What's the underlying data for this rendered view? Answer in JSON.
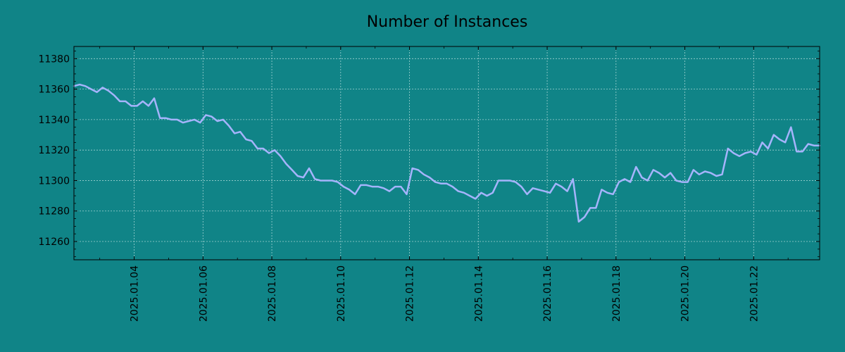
{
  "colors": {
    "background": "#108487",
    "line": "#a5b4fc",
    "grid": "#9fd1d1",
    "axes": "#000000"
  },
  "chart_data": {
    "type": "line",
    "title": "Number of Instances",
    "xlabel": "",
    "ylabel": "",
    "x_axis_type": "date",
    "xlim": [
      "2025-01-02 06:00",
      "2025-01-23 22:00"
    ],
    "ylim": [
      11248,
      11388
    ],
    "y_ticks": [
      11260,
      11280,
      11300,
      11320,
      11340,
      11360,
      11380
    ],
    "y_tick_labels": [
      "11260",
      "11280",
      "11300",
      "11320",
      "11340",
      "11360",
      "11380"
    ],
    "x_ticks": [
      "2025-01-04",
      "2025-01-06",
      "2025-01-08",
      "2025-01-10",
      "2025-01-12",
      "2025-01-14",
      "2025-01-16",
      "2025-01-18",
      "2025-01-20",
      "2025-01-22"
    ],
    "x_tick_labels": [
      "2025.01.04",
      "2025.01.06",
      "2025.01.08",
      "2025.01.10",
      "2025.01.12",
      "2025.01.14",
      "2025.01.16",
      "2025.01.18",
      "2025.01.20",
      "2025.01.22"
    ],
    "grid": true,
    "legend": "none",
    "series": [
      {
        "x": [
          "2025-01-02 06:00",
          "2025-01-02 10:00",
          "2025-01-02 14:00",
          "2025-01-02 18:00",
          "2025-01-02 22:00",
          "2025-01-03 02:00",
          "2025-01-03 06:00",
          "2025-01-03 10:00",
          "2025-01-03 14:00",
          "2025-01-03 18:00",
          "2025-01-03 22:00",
          "2025-01-04 02:00",
          "2025-01-04 06:00",
          "2025-01-04 10:00",
          "2025-01-04 14:00",
          "2025-01-04 18:00",
          "2025-01-04 22:00",
          "2025-01-05 02:00",
          "2025-01-05 06:00",
          "2025-01-05 10:00",
          "2025-01-05 14:00",
          "2025-01-05 18:00",
          "2025-01-05 22:00",
          "2025-01-06 02:00",
          "2025-01-06 06:00",
          "2025-01-06 10:00",
          "2025-01-06 14:00",
          "2025-01-06 18:00",
          "2025-01-06 22:00",
          "2025-01-07 02:00",
          "2025-01-07 06:00",
          "2025-01-07 10:00",
          "2025-01-07 14:00",
          "2025-01-07 18:00",
          "2025-01-07 22:00",
          "2025-01-08 02:00",
          "2025-01-08 06:00",
          "2025-01-08 10:00",
          "2025-01-08 14:00",
          "2025-01-08 18:00",
          "2025-01-08 22:00",
          "2025-01-09 02:00",
          "2025-01-09 06:00",
          "2025-01-09 10:00",
          "2025-01-09 14:00",
          "2025-01-09 18:00",
          "2025-01-09 22:00",
          "2025-01-10 02:00",
          "2025-01-10 06:00",
          "2025-01-10 10:00",
          "2025-01-10 14:00",
          "2025-01-10 18:00",
          "2025-01-10 22:00",
          "2025-01-11 02:00",
          "2025-01-11 06:00",
          "2025-01-11 10:00",
          "2025-01-11 14:00",
          "2025-01-11 18:00",
          "2025-01-11 22:00",
          "2025-01-12 02:00",
          "2025-01-12 06:00",
          "2025-01-12 10:00",
          "2025-01-12 14:00",
          "2025-01-12 18:00",
          "2025-01-12 22:00",
          "2025-01-13 02:00",
          "2025-01-13 06:00",
          "2025-01-13 10:00",
          "2025-01-13 14:00",
          "2025-01-13 18:00",
          "2025-01-13 22:00",
          "2025-01-14 02:00",
          "2025-01-14 06:00",
          "2025-01-14 10:00",
          "2025-01-14 14:00",
          "2025-01-14 18:00",
          "2025-01-14 22:00",
          "2025-01-15 02:00",
          "2025-01-15 06:00",
          "2025-01-15 10:00",
          "2025-01-15 14:00",
          "2025-01-15 18:00",
          "2025-01-15 22:00",
          "2025-01-16 02:00",
          "2025-01-16 06:00",
          "2025-01-16 10:00",
          "2025-01-16 14:00",
          "2025-01-16 18:00",
          "2025-01-16 22:00",
          "2025-01-17 02:00",
          "2025-01-17 06:00",
          "2025-01-17 10:00",
          "2025-01-17 14:00",
          "2025-01-17 18:00",
          "2025-01-17 22:00",
          "2025-01-18 02:00",
          "2025-01-18 06:00",
          "2025-01-18 10:00",
          "2025-01-18 14:00",
          "2025-01-18 18:00",
          "2025-01-18 22:00",
          "2025-01-19 02:00",
          "2025-01-19 06:00",
          "2025-01-19 10:00",
          "2025-01-19 14:00",
          "2025-01-19 18:00",
          "2025-01-19 22:00",
          "2025-01-20 02:00",
          "2025-01-20 06:00",
          "2025-01-20 10:00",
          "2025-01-20 14:00",
          "2025-01-20 18:00",
          "2025-01-20 22:00",
          "2025-01-21 02:00",
          "2025-01-21 06:00",
          "2025-01-21 10:00",
          "2025-01-21 14:00",
          "2025-01-21 18:00",
          "2025-01-21 22:00",
          "2025-01-22 02:00",
          "2025-01-22 06:00",
          "2025-01-22 10:00",
          "2025-01-22 14:00",
          "2025-01-22 18:00",
          "2025-01-22 22:00",
          "2025-01-23 02:00",
          "2025-01-23 06:00",
          "2025-01-23 10:00",
          "2025-01-23 14:00",
          "2025-01-23 18:00",
          "2025-01-23 22:00"
        ],
        "y": [
          11362,
          11363,
          11362,
          11360,
          11358,
          11361,
          11359,
          11356,
          11352,
          11352,
          11349,
          11349,
          11352,
          11349,
          11354,
          11341,
          11341,
          11340,
          11340,
          11338,
          11339,
          11340,
          11338,
          11343,
          11342,
          11339,
          11340,
          11336,
          11331,
          11332,
          11327,
          11326,
          11321,
          11321,
          11318,
          11320,
          11316,
          11311,
          11307,
          11303,
          11302,
          11308,
          11301,
          11300,
          11300,
          11300,
          11299,
          11296,
          11294,
          11291,
          11297,
          11297,
          11296,
          11296,
          11295,
          11293,
          11296,
          11296,
          11291,
          11308,
          11307,
          11304,
          11302,
          11299,
          11298,
          11298,
          11296,
          11293,
          11292,
          11290,
          11288,
          11292,
          11290,
          11292,
          11300,
          11300,
          11300,
          11299,
          11296,
          11291,
          11295,
          11294,
          11293,
          11292,
          11298,
          11296,
          11293,
          11301,
          11273,
          11276,
          11282,
          11282,
          11294,
          11292,
          11291,
          11299,
          11301,
          11299,
          11309,
          11302,
          11300,
          11307,
          11305,
          11302,
          11305,
          11300,
          11299,
          11299,
          11307,
          11304,
          11306,
          11305,
          11303,
          11304,
          11321,
          11318,
          11316,
          11318,
          11319,
          11317,
          11325,
          11321,
          11330,
          11327,
          11325,
          11335,
          11319,
          11319,
          11324,
          11323,
          11323
        ]
      }
    ]
  }
}
